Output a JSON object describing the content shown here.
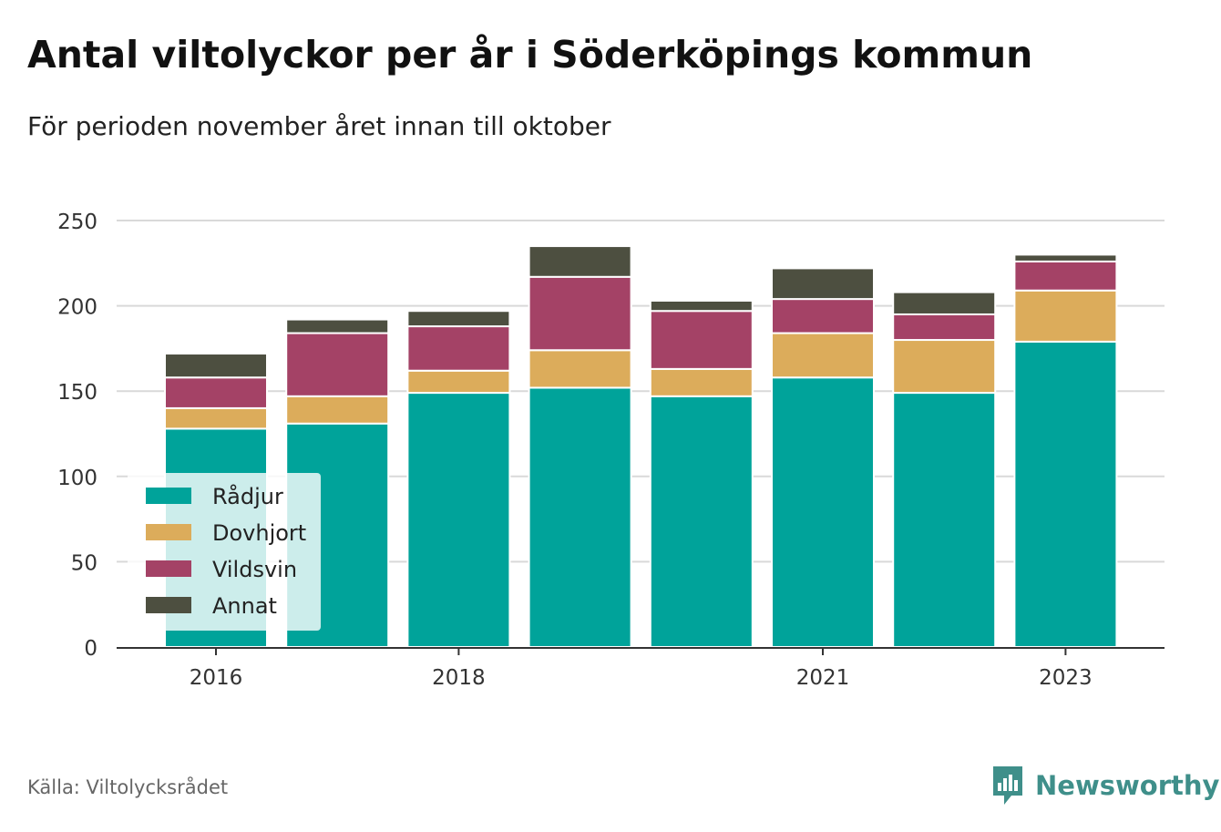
{
  "title": "Antal viltolyckor per år i Söderköpings kommun",
  "subtitle": "För perioden november året innan till oktober",
  "source": "Källa: Viltolycksrådet",
  "brand": {
    "name": "Newsworthy",
    "logo_icon": "newsworthy-bar-chart-icon",
    "color": "#3f8f8a"
  },
  "chart_data": {
    "type": "bar",
    "stacked": true,
    "x": [
      2016,
      2017,
      2018,
      2019,
      2020,
      2021,
      2022,
      2023
    ],
    "x_tick_labels": [
      "2016",
      "2018",
      "2021",
      "2023"
    ],
    "x_tick_values": [
      2016,
      2018,
      2021,
      2023
    ],
    "ylim": [
      0,
      250
    ],
    "y_ticks": [
      0,
      50,
      100,
      150,
      200,
      250
    ],
    "grid": true,
    "legend_position": "bottom-left",
    "series": [
      {
        "name": "Rådjur",
        "color": "#00a39a",
        "values": [
          128,
          131,
          149,
          152,
          147,
          158,
          149,
          179
        ]
      },
      {
        "name": "Dovhjort",
        "color": "#dcac5b",
        "values": [
          12,
          16,
          13,
          22,
          16,
          26,
          31,
          30
        ]
      },
      {
        "name": "Vildsvin",
        "color": "#a44266",
        "values": [
          18,
          37,
          26,
          43,
          34,
          20,
          15,
          17
        ]
      },
      {
        "name": "Annat",
        "color": "#4d4f40",
        "values": [
          14,
          8,
          9,
          18,
          6,
          18,
          13,
          4
        ]
      }
    ]
  }
}
